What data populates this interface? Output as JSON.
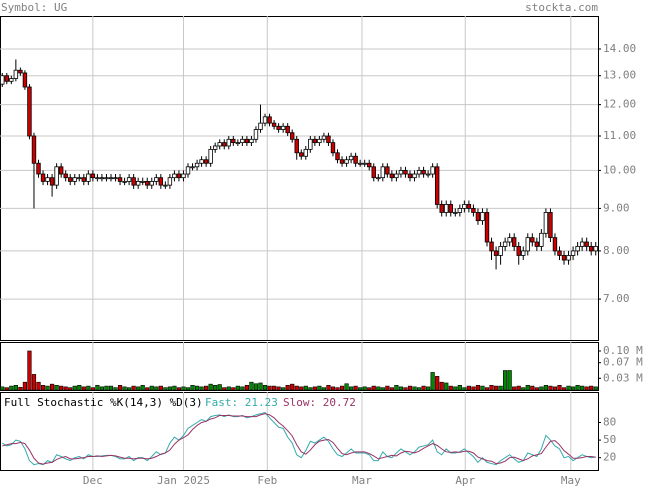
{
  "header": {
    "symbol": "Symbol: UG",
    "source": "stockta.com"
  },
  "chart_data": [
    {
      "type": "candlestick",
      "log": true,
      "grid": true,
      "up_color": "#ffffff",
      "down_color": "#cc0000",
      "xlim": [
        -0.5,
        131.5
      ],
      "xticks": [
        {
          "value": 20,
          "label": "Dec"
        },
        {
          "value": 40,
          "label": "Jan 2025"
        },
        {
          "value": 58.5,
          "label": "Feb"
        },
        {
          "value": 79.4,
          "label": "Mar"
        },
        {
          "value": 102.2,
          "label": "Apr"
        },
        {
          "value": 125.5,
          "label": "May"
        }
      ],
      "ylim": [
        6.25,
        15.34
      ],
      "yticks": [
        {
          "value": 14,
          "label": "14.00"
        },
        {
          "value": 13,
          "label": "13.00"
        },
        {
          "value": 12,
          "label": "12.00"
        },
        {
          "value": 11,
          "label": "11.00"
        },
        {
          "value": 10,
          "label": "10.00"
        },
        {
          "value": 9,
          "label": "9.00"
        },
        {
          "value": 8,
          "label": "8.00"
        },
        {
          "value": 7,
          "label": "7.00"
        }
      ],
      "open": [
        12.7,
        13.0,
        12.8,
        12.9,
        13.2,
        13.1,
        12.6,
        11.0,
        10.2,
        9.9,
        9.7,
        9.8,
        9.6,
        10.1,
        9.9,
        9.8,
        9.7,
        9.8,
        9.8,
        9.7,
        9.9,
        9.8,
        9.8,
        9.8,
        9.8,
        9.8,
        9.8,
        9.7,
        9.7,
        9.8,
        9.6,
        9.7,
        9.7,
        9.6,
        9.7,
        9.8,
        9.6,
        9.6,
        9.8,
        9.9,
        9.8,
        9.9,
        10.1,
        10.1,
        10.2,
        10.3,
        10.2,
        10.6,
        10.7,
        10.8,
        10.7,
        10.9,
        10.8,
        10.8,
        10.9,
        10.8,
        10.9,
        11.2,
        11.4,
        11.6,
        11.4,
        11.3,
        11.2,
        11.3,
        11.1,
        10.9,
        10.5,
        10.4,
        10.6,
        10.9,
        10.8,
        10.9,
        11.0,
        10.8,
        10.5,
        10.3,
        10.2,
        10.3,
        10.4,
        10.2,
        10.2,
        10.2,
        10.1,
        9.8,
        9.8,
        10.1,
        9.9,
        9.8,
        9.9,
        10.0,
        9.9,
        9.8,
        9.9,
        10.0,
        9.9,
        9.9,
        10.1,
        9.1,
        8.9,
        9.1,
        8.9,
        8.9,
        9.0,
        9.1,
        9.0,
        8.9,
        8.7,
        8.9,
        8.2,
        8.0,
        7.9,
        8.1,
        8.2,
        8.3,
        8.1,
        7.9,
        8.0,
        8.3,
        8.2,
        8.1,
        8.4,
        8.9,
        8.3,
        8.0,
        7.9,
        7.8,
        7.9,
        8.0,
        8.1,
        8.2,
        8.1,
        8.0
      ],
      "high": [
        13.1,
        13.1,
        13.0,
        13.6,
        13.3,
        13.2,
        12.7,
        11.1,
        10.3,
        10.0,
        9.9,
        9.9,
        10.2,
        10.2,
        10.0,
        9.9,
        9.9,
        9.9,
        9.9,
        10.0,
        10.0,
        9.9,
        9.9,
        9.9,
        9.9,
        9.9,
        9.9,
        9.8,
        9.9,
        9.9,
        9.8,
        9.8,
        9.8,
        9.8,
        9.9,
        9.9,
        9.7,
        9.9,
        10.0,
        10.0,
        10.0,
        10.2,
        10.2,
        10.3,
        10.4,
        10.4,
        10.7,
        10.8,
        10.9,
        10.9,
        11.0,
        11.0,
        10.9,
        11.0,
        11.0,
        11.0,
        11.3,
        12.0,
        11.7,
        11.7,
        11.5,
        11.4,
        11.4,
        11.4,
        11.2,
        11.0,
        10.6,
        10.7,
        11.0,
        11.0,
        11.0,
        11.1,
        11.1,
        10.9,
        10.6,
        10.4,
        10.4,
        10.5,
        10.5,
        10.3,
        10.3,
        10.3,
        10.2,
        9.9,
        10.2,
        10.2,
        10.0,
        10.0,
        10.1,
        10.1,
        10.0,
        10.0,
        10.1,
        10.1,
        10.0,
        10.2,
        10.2,
        9.2,
        9.2,
        9.2,
        9.0,
        9.1,
        9.2,
        9.2,
        9.1,
        9.0,
        9.0,
        9.0,
        8.3,
        8.1,
        8.2,
        8.3,
        8.4,
        8.4,
        8.2,
        8.1,
        8.4,
        8.4,
        8.3,
        8.5,
        9.0,
        9.0,
        8.4,
        8.1,
        8.0,
        8.0,
        8.1,
        8.2,
        8.3,
        8.3,
        8.2,
        8.2
      ],
      "low": [
        12.6,
        12.7,
        12.7,
        12.8,
        13.0,
        12.5,
        10.9,
        9.0,
        9.8,
        9.6,
        9.6,
        9.3,
        9.5,
        9.8,
        9.7,
        9.6,
        9.6,
        9.7,
        9.6,
        9.6,
        9.7,
        9.7,
        9.7,
        9.7,
        9.7,
        9.7,
        9.6,
        9.6,
        9.6,
        9.5,
        9.5,
        9.6,
        9.5,
        9.5,
        9.6,
        9.5,
        9.5,
        9.5,
        9.7,
        9.7,
        9.7,
        9.8,
        10.0,
        10.0,
        10.1,
        10.1,
        10.1,
        10.5,
        10.6,
        10.6,
        10.6,
        10.7,
        10.7,
        10.7,
        10.7,
        10.7,
        10.8,
        11.1,
        11.3,
        11.3,
        11.2,
        11.1,
        11.1,
        11.0,
        10.8,
        10.3,
        10.3,
        10.3,
        10.5,
        10.7,
        10.7,
        10.8,
        10.7,
        10.4,
        10.2,
        10.1,
        10.1,
        10.2,
        10.1,
        10.1,
        10.1,
        10.0,
        9.7,
        9.7,
        9.7,
        9.8,
        9.7,
        9.7,
        9.8,
        9.8,
        9.7,
        9.7,
        9.8,
        9.8,
        9.8,
        9.8,
        9.0,
        8.8,
        8.8,
        8.8,
        8.8,
        8.8,
        8.9,
        8.9,
        8.8,
        8.6,
        8.6,
        8.1,
        7.8,
        7.6,
        7.7,
        8.0,
        8.1,
        8.0,
        7.7,
        7.8,
        7.9,
        8.1,
        8.0,
        8.0,
        8.3,
        8.2,
        7.9,
        7.8,
        7.7,
        7.7,
        7.8,
        7.9,
        8.0,
        8.0,
        7.9,
        7.9
      ],
      "close": [
        13.0,
        12.8,
        12.9,
        13.2,
        13.1,
        12.6,
        11.0,
        10.2,
        9.9,
        9.7,
        9.8,
        9.6,
        10.1,
        9.9,
        9.8,
        9.7,
        9.8,
        9.8,
        9.7,
        9.9,
        9.8,
        9.8,
        9.8,
        9.8,
        9.8,
        9.8,
        9.7,
        9.7,
        9.8,
        9.6,
        9.7,
        9.7,
        9.6,
        9.7,
        9.8,
        9.6,
        9.6,
        9.8,
        9.9,
        9.8,
        9.9,
        10.1,
        10.1,
        10.2,
        10.3,
        10.2,
        10.6,
        10.7,
        10.8,
        10.7,
        10.9,
        10.8,
        10.8,
        10.9,
        10.8,
        10.9,
        11.2,
        11.4,
        11.6,
        11.4,
        11.3,
        11.2,
        11.3,
        11.1,
        10.9,
        10.5,
        10.4,
        10.6,
        10.9,
        10.8,
        10.9,
        11.0,
        10.8,
        10.5,
        10.3,
        10.2,
        10.3,
        10.4,
        10.2,
        10.2,
        10.2,
        10.1,
        9.8,
        9.8,
        10.1,
        9.9,
        9.8,
        9.9,
        10.0,
        9.9,
        9.8,
        9.9,
        10.0,
        9.9,
        9.9,
        10.1,
        9.1,
        8.9,
        9.1,
        8.9,
        8.9,
        9.0,
        9.1,
        9.0,
        8.9,
        8.7,
        8.9,
        8.2,
        8.0,
        7.9,
        8.1,
        8.2,
        8.3,
        8.1,
        7.9,
        8.0,
        8.3,
        8.2,
        8.1,
        8.4,
        8.9,
        8.3,
        8.0,
        7.9,
        7.8,
        7.9,
        8.0,
        8.1,
        8.2,
        8.1,
        8.0,
        8.1
      ]
    },
    {
      "type": "volume",
      "grid": false,
      "up_color": "#008800",
      "down_color": "#cc0000",
      "ylim": [
        0,
        0.123
      ],
      "yticks": [
        {
          "value": 0.1,
          "label": "0.10 M"
        },
        {
          "value": 0.07,
          "label": "0.07 M"
        },
        {
          "value": 0.03,
          "label": "0.03 M"
        }
      ],
      "values": [
        0.008,
        0.006,
        0.01,
        0.012,
        0.007,
        0.02,
        0.1,
        0.04,
        0.02,
        0.012,
        0.01,
        0.015,
        0.012,
        0.01,
        0.008,
        0.006,
        0.01,
        0.012,
        0.008,
        0.01,
        0.006,
        0.012,
        0.008,
        0.01,
        0.01,
        0.006,
        0.012,
        0.008,
        0.006,
        0.01,
        0.008,
        0.012,
        0.006,
        0.01,
        0.008,
        0.01,
        0.006,
        0.008,
        0.01,
        0.006,
        0.008,
        0.006,
        0.012,
        0.01,
        0.008,
        0.01,
        0.015,
        0.012,
        0.014,
        0.006,
        0.008,
        0.006,
        0.01,
        0.008,
        0.012,
        0.02,
        0.016,
        0.018,
        0.012,
        0.01,
        0.01,
        0.008,
        0.006,
        0.012,
        0.015,
        0.01,
        0.008,
        0.01,
        0.006,
        0.008,
        0.01,
        0.006,
        0.012,
        0.008,
        0.006,
        0.01,
        0.016,
        0.008,
        0.01,
        0.006,
        0.008,
        0.006,
        0.01,
        0.008,
        0.006,
        0.01,
        0.006,
        0.012,
        0.008,
        0.006,
        0.01,
        0.008,
        0.006,
        0.01,
        0.008,
        0.045,
        0.035,
        0.02,
        0.018,
        0.01,
        0.008,
        0.012,
        0.006,
        0.01,
        0.008,
        0.012,
        0.01,
        0.006,
        0.012,
        0.01,
        0.01,
        0.05,
        0.05,
        0.008,
        0.01,
        0.006,
        0.012,
        0.01,
        0.006,
        0.008,
        0.012,
        0.01,
        0.008,
        0.012,
        0.006,
        0.01,
        0.008,
        0.012,
        0.01,
        0.008,
        0.01,
        0.008
      ]
    },
    {
      "type": "line",
      "title": "Full Stochastic %K(14,3) %D(3)",
      "grid": false,
      "ylim": [
        -1,
        132
      ],
      "yticks": [
        80,
        50,
        20
      ],
      "series": [
        {
          "name": "Fast: 21.23",
          "color": "#33aaaa",
          "values": [
            45,
            40,
            42,
            50,
            48,
            35,
            15,
            8,
            10,
            8,
            15,
            12,
            25,
            22,
            18,
            15,
            20,
            22,
            18,
            25,
            22,
            22,
            23,
            24,
            24,
            22,
            18,
            18,
            22,
            15,
            20,
            20,
            15,
            22,
            30,
            25,
            28,
            45,
            55,
            50,
            58,
            70,
            75,
            80,
            85,
            82,
            90,
            92,
            93,
            90,
            93,
            90,
            90,
            92,
            88,
            90,
            93,
            95,
            97,
            88,
            80,
            72,
            70,
            55,
            45,
            25,
            20,
            32,
            48,
            45,
            50,
            55,
            48,
            35,
            25,
            22,
            28,
            35,
            28,
            28,
            28,
            25,
            15,
            15,
            30,
            22,
            20,
            28,
            35,
            30,
            25,
            30,
            38,
            40,
            42,
            50,
            30,
            25,
            35,
            28,
            28,
            30,
            35,
            28,
            22,
            12,
            20,
            12,
            10,
            8,
            15,
            20,
            25,
            18,
            12,
            15,
            28,
            25,
            22,
            35,
            58,
            50,
            40,
            35,
            20,
            22,
            15,
            20,
            25,
            22,
            20,
            21.23
          ]
        },
        {
          "name": "Slow: 20.72",
          "color": "#993366",
          "values": [
            40,
            42,
            44,
            44,
            46,
            44,
            33,
            19,
            11,
            9,
            11,
            12,
            17,
            20,
            22,
            18,
            18,
            19,
            20,
            22,
            22,
            23,
            22,
            23,
            24,
            23,
            21,
            19,
            19,
            18,
            19,
            19,
            18,
            19,
            22,
            26,
            28,
            33,
            43,
            50,
            54,
            59,
            68,
            75,
            80,
            82,
            86,
            88,
            92,
            92,
            92,
            91,
            91,
            91,
            90,
            90,
            90,
            93,
            95,
            93,
            88,
            80,
            74,
            66,
            57,
            42,
            30,
            26,
            33,
            42,
            48,
            50,
            51,
            46,
            36,
            27,
            25,
            28,
            30,
            30,
            30,
            27,
            23,
            18,
            20,
            22,
            24,
            23,
            28,
            31,
            30,
            28,
            31,
            36,
            40,
            44,
            41,
            35,
            30,
            29,
            30,
            29,
            31,
            31,
            28,
            21,
            18,
            15,
            14,
            10,
            11,
            14,
            20,
            21,
            18,
            15,
            18,
            23,
            25,
            27,
            38,
            48,
            49,
            42,
            32,
            26,
            19,
            19,
            20,
            22,
            22,
            20.72
          ]
        }
      ]
    }
  ]
}
